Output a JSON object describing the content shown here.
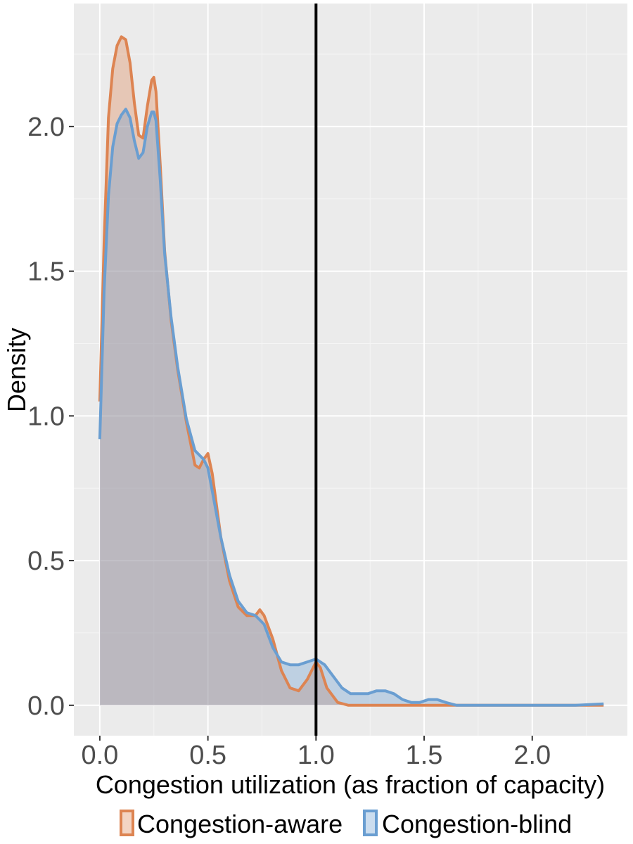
{
  "chart_data": {
    "type": "area",
    "xlabel": "Congestion utilization (as fraction of capacity)",
    "ylabel": "Density",
    "xlim": [
      -0.12,
      2.44
    ],
    "ylim": [
      -0.105,
      2.425
    ],
    "x_ticks": [
      0.0,
      0.5,
      1.0,
      1.5,
      2.0
    ],
    "y_ticks": [
      0.0,
      0.5,
      1.0,
      1.5,
      2.0
    ],
    "x_tick_labels": [
      "0.0",
      "0.5",
      "1.0",
      "1.5",
      "2.0"
    ],
    "y_tick_labels": [
      "0.0",
      "0.5",
      "1.0",
      "1.5",
      "2.0"
    ],
    "grid": true,
    "background": "#ebebeb",
    "vline": {
      "x": 1.0,
      "color": "#000000"
    },
    "legend": {
      "position": "bottom"
    },
    "series": [
      {
        "name": "Congestion-aware",
        "color": "#dd8452",
        "fill": "rgba(221,132,82,0.35)",
        "x": [
          0.0,
          0.02,
          0.04,
          0.06,
          0.08,
          0.1,
          0.12,
          0.14,
          0.16,
          0.18,
          0.2,
          0.22,
          0.24,
          0.25,
          0.26,
          0.28,
          0.3,
          0.33,
          0.36,
          0.4,
          0.44,
          0.46,
          0.48,
          0.5,
          0.52,
          0.56,
          0.6,
          0.64,
          0.68,
          0.72,
          0.74,
          0.76,
          0.8,
          0.84,
          0.88,
          0.92,
          0.96,
          1.0,
          1.02,
          1.05,
          1.1,
          1.15,
          1.3,
          1.5,
          2.0,
          2.33
        ],
        "y": [
          1.05,
          1.6,
          2.03,
          2.2,
          2.28,
          2.31,
          2.3,
          2.22,
          2.08,
          1.97,
          1.96,
          2.07,
          2.16,
          2.17,
          2.12,
          1.86,
          1.57,
          1.33,
          1.16,
          0.98,
          0.83,
          0.82,
          0.85,
          0.87,
          0.8,
          0.58,
          0.43,
          0.34,
          0.31,
          0.31,
          0.33,
          0.31,
          0.23,
          0.12,
          0.06,
          0.05,
          0.09,
          0.15,
          0.13,
          0.06,
          0.01,
          0.0,
          0.0,
          0.0,
          0.0,
          0.0
        ]
      },
      {
        "name": "Congestion-blind",
        "color": "#6a9ed1",
        "fill": "rgba(106,158,209,0.35)",
        "x": [
          0.0,
          0.02,
          0.04,
          0.06,
          0.08,
          0.1,
          0.12,
          0.14,
          0.16,
          0.18,
          0.2,
          0.22,
          0.24,
          0.25,
          0.26,
          0.28,
          0.3,
          0.33,
          0.36,
          0.4,
          0.44,
          0.48,
          0.5,
          0.52,
          0.56,
          0.6,
          0.64,
          0.68,
          0.72,
          0.76,
          0.8,
          0.84,
          0.88,
          0.92,
          0.96,
          1.0,
          1.04,
          1.08,
          1.12,
          1.16,
          1.2,
          1.24,
          1.28,
          1.32,
          1.36,
          1.4,
          1.44,
          1.48,
          1.52,
          1.56,
          1.6,
          1.65,
          1.7,
          1.8,
          2.0,
          2.2,
          2.33
        ],
        "y": [
          0.92,
          1.43,
          1.76,
          1.93,
          2.01,
          2.04,
          2.06,
          2.03,
          1.95,
          1.89,
          1.91,
          2.0,
          2.05,
          2.05,
          2.02,
          1.81,
          1.56,
          1.34,
          1.17,
          0.99,
          0.88,
          0.85,
          0.82,
          0.74,
          0.58,
          0.45,
          0.36,
          0.32,
          0.31,
          0.28,
          0.2,
          0.15,
          0.14,
          0.14,
          0.15,
          0.16,
          0.14,
          0.1,
          0.06,
          0.04,
          0.04,
          0.04,
          0.05,
          0.05,
          0.04,
          0.02,
          0.01,
          0.01,
          0.02,
          0.02,
          0.01,
          0.0,
          0.0,
          0.0,
          0.0,
          0.0,
          0.005
        ]
      }
    ]
  }
}
